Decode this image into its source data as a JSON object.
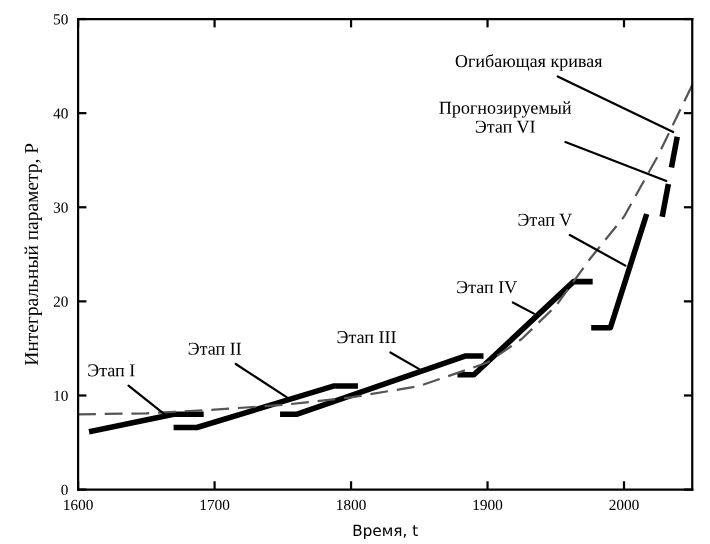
{
  "chart_data": {
    "type": "line",
    "xlabel": "Время, t",
    "ylabel": "Интегральный параметр, P",
    "xlim": [
      1600,
      2050
    ],
    "xticks": [
      1600,
      1700,
      1800,
      1900,
      2000
    ],
    "ylim": [
      0,
      50
    ],
    "yticks": [
      0,
      10,
      20,
      30,
      40,
      50
    ],
    "grid": false,
    "legend": false,
    "series": [
      {
        "color": "#000000",
        "line_style": "solid",
        "x": [
          1610,
          1670,
          1690
        ],
        "values": [
          6.2,
          8.0,
          8.0
        ]
      },
      {
        "color": "#000000",
        "line_style": "solid",
        "x": [
          1672,
          1687,
          1787,
          1803
        ],
        "values": [
          6.6,
          6.6,
          11.0,
          11.0
        ]
      },
      {
        "color": "#000000",
        "line_style": "solid",
        "x": [
          1750,
          1760,
          1884,
          1895
        ],
        "values": [
          8.0,
          8.0,
          14.2,
          14.2
        ]
      },
      {
        "color": "#000000",
        "line_style": "solid",
        "x": [
          1880,
          1890,
          1963,
          1975
        ],
        "values": [
          12.2,
          12.2,
          22.1,
          22.1
        ]
      },
      {
        "color": "#000000",
        "line_style": "solid",
        "x": [
          1978,
          1990,
          2016
        ],
        "values": [
          17.2,
          17.2,
          29.0
        ]
      },
      {
        "color": "#000000",
        "line_style": "dashed",
        "x": [
          2028,
          2039
        ],
        "values": [
          29.0,
          37.5
        ]
      },
      {
        "color": "#555555",
        "line_style": "dashed",
        "x": [
          1600,
          1650,
          1700,
          1750,
          1800,
          1850,
          1900,
          1925,
          1950,
          1975,
          2000,
          2025,
          2050
        ],
        "values": [
          8.0,
          8.1,
          8.5,
          9.0,
          9.8,
          11.0,
          13.5,
          16.0,
          19.5,
          24.5,
          29.0,
          35.5,
          43.0
        ]
      }
    ],
    "annotations": [
      {
        "text": "Этап I",
        "x": 1665,
        "y": 7.8
      },
      {
        "text": "Этап II",
        "x": 1753,
        "y": 9.8
      },
      {
        "text": "Этап III",
        "x": 1850,
        "y": 12.8
      },
      {
        "text": "Этап IV",
        "x": 1934,
        "y": 18.7
      },
      {
        "text": "Этап V",
        "x": 2001,
        "y": 23.8
      },
      {
        "text": "Прогнозируемый\nЭтап VI",
        "x": 2031,
        "y": 32.8
      },
      {
        "text": "Огибающая кривая",
        "x": 2036,
        "y": 38.0
      }
    ]
  }
}
